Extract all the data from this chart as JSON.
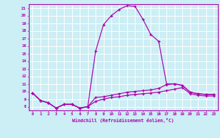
{
  "xlabel": "Windchill (Refroidissement éolien,°C)",
  "bg_color": "#cceef5",
  "grid_color": "#ffffff",
  "line_color": "#aa00aa",
  "xlim": [
    -0.5,
    23.5
  ],
  "ylim": [
    7.5,
    21.5
  ],
  "yticks": [
    8,
    9,
    10,
    11,
    12,
    13,
    14,
    15,
    16,
    17,
    18,
    19,
    20,
    21
  ],
  "xticks": [
    0,
    1,
    2,
    3,
    4,
    5,
    6,
    7,
    8,
    9,
    10,
    11,
    12,
    13,
    14,
    15,
    16,
    17,
    18,
    19,
    20,
    21,
    22,
    23
  ],
  "series1_x": [
    0,
    1,
    2,
    3,
    4,
    5,
    6,
    7,
    8,
    9,
    10,
    11,
    12,
    13,
    14,
    15,
    16,
    17,
    18,
    19,
    20,
    21,
    22,
    23
  ],
  "series1_y": [
    9.8,
    8.8,
    8.5,
    7.8,
    8.3,
    8.3,
    7.8,
    8.0,
    15.3,
    18.8,
    20.0,
    20.8,
    21.3,
    21.2,
    19.5,
    17.5,
    16.6,
    11.0,
    11.0,
    10.8,
    9.9,
    9.7,
    9.6,
    9.6
  ],
  "series2_x": [
    0,
    1,
    2,
    3,
    4,
    5,
    6,
    7,
    8,
    9,
    10,
    11,
    12,
    13,
    14,
    15,
    16,
    17,
    18,
    19,
    20,
    21,
    22,
    23
  ],
  "series2_y": [
    9.8,
    8.8,
    8.5,
    7.8,
    8.3,
    8.3,
    7.8,
    8.0,
    9.2,
    9.3,
    9.5,
    9.7,
    9.9,
    10.0,
    10.1,
    10.2,
    10.4,
    10.9,
    11.0,
    10.8,
    9.9,
    9.7,
    9.6,
    9.6
  ],
  "series3_x": [
    0,
    1,
    2,
    3,
    4,
    5,
    6,
    7,
    8,
    9,
    10,
    11,
    12,
    13,
    14,
    15,
    16,
    17,
    18,
    19,
    20,
    21,
    22,
    23
  ],
  "series3_y": [
    9.8,
    8.8,
    8.5,
    7.8,
    8.3,
    8.3,
    7.8,
    8.0,
    8.7,
    9.0,
    9.2,
    9.3,
    9.5,
    9.6,
    9.7,
    9.8,
    9.9,
    10.1,
    10.3,
    10.5,
    9.7,
    9.5,
    9.4,
    9.4
  ]
}
